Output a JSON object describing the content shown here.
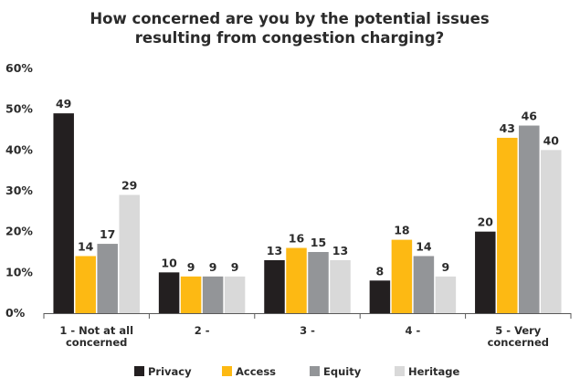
{
  "chart_data": {
    "type": "bar",
    "title": [
      "How concerned are you by the potential issues",
      "resulting from congestion charging?"
    ],
    "categories": [
      [
        "1 - Not at all",
        "concerned"
      ],
      [
        "2 -"
      ],
      [
        "3 -"
      ],
      [
        "4 -"
      ],
      [
        "5 - Very",
        "concerned"
      ]
    ],
    "series": [
      {
        "name": "Privacy",
        "color": "#231f20",
        "values": [
          49,
          10,
          13,
          8,
          20
        ]
      },
      {
        "name": "Access",
        "color": "#fdb913",
        "values": [
          14,
          9,
          16,
          18,
          43
        ]
      },
      {
        "name": "Equity",
        "color": "#939598",
        "values": [
          17,
          9,
          15,
          14,
          46
        ]
      },
      {
        "name": "Heritage",
        "color": "#d9d9d9",
        "values": [
          29,
          9,
          13,
          9,
          40
        ]
      }
    ],
    "yticks": [
      "0%",
      "10%",
      "20%",
      "30%",
      "40%",
      "50%",
      "60%"
    ],
    "ylim": [
      0,
      60
    ],
    "grid": false,
    "legend_position": "bottom"
  }
}
